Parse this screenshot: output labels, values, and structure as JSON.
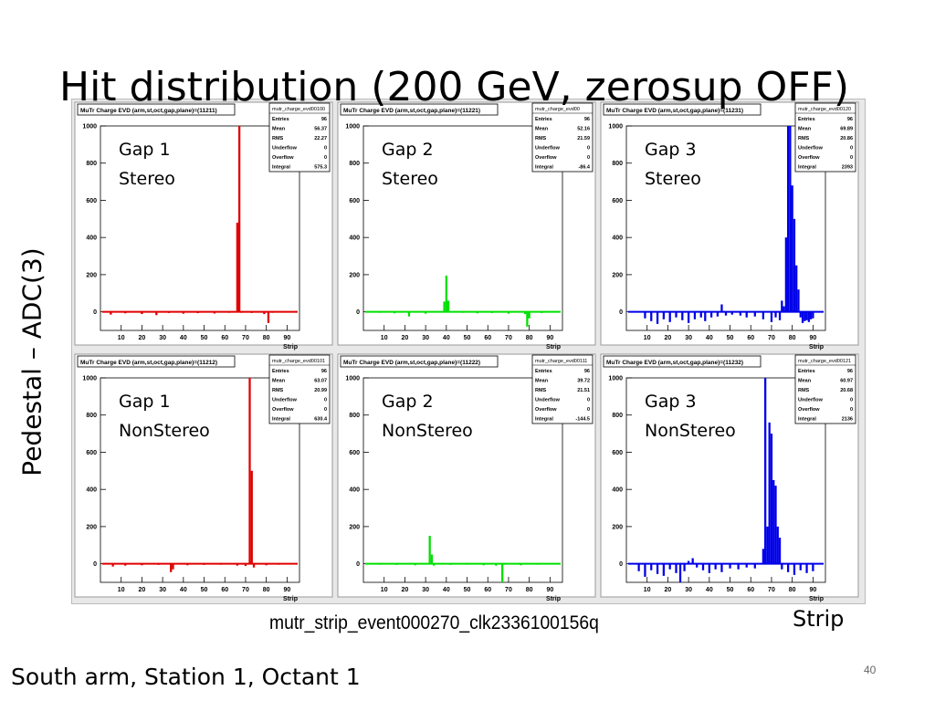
{
  "slide": {
    "title": "Hit distribution (200 GeV, zerosup OFF)",
    "y_axis_label": "Pedestal – ADC(3)",
    "x_axis_label": "Strip",
    "event_file": "mutr_strip_event000270_clk2336100156q",
    "footer": "South arm, Station 1, Octant 1",
    "page_number": "40"
  },
  "chart_data": [
    {
      "type": "bar",
      "title": "MuTr Charge EVD (arm,st,oct,gap,plane)=(11211)",
      "gap_label": "Gap 1",
      "plane_label": "Stereo",
      "color": "#e00000",
      "stats_name": "mutr_charge_evd00100",
      "stats": [
        [
          "Entries",
          "96"
        ],
        [
          "Mean",
          "56.37"
        ],
        [
          "RMS",
          "22.27"
        ],
        [
          "Underflow",
          "0"
        ],
        [
          "Overflow",
          "0"
        ],
        [
          "Integral",
          "575.3"
        ]
      ],
      "xlabel": "Strip",
      "xlim": [
        0,
        96
      ],
      "ylim": [
        -100,
        1000
      ],
      "x_ticks": [
        10,
        20,
        30,
        40,
        50,
        60,
        70,
        80,
        90
      ],
      "y_ticks": [
        0,
        200,
        400,
        600,
        800,
        1000
      ],
      "baseline": 0,
      "points": [
        [
          5,
          -15
        ],
        [
          12,
          -8
        ],
        [
          20,
          -12
        ],
        [
          27,
          -18
        ],
        [
          33,
          -6
        ],
        [
          40,
          -10
        ],
        [
          47,
          -7
        ],
        [
          55,
          -9
        ],
        [
          62,
          -5
        ],
        [
          66,
          480
        ],
        [
          67,
          1000
        ],
        [
          68,
          -5
        ],
        [
          73,
          -6
        ],
        [
          79,
          -12
        ],
        [
          81,
          -60
        ],
        [
          83,
          -5
        ]
      ]
    },
    {
      "type": "bar",
      "title": "MuTr Charge EVD (arm,st,oct,gap,plane)=(11221)",
      "gap_label": "Gap 2",
      "plane_label": "Stereo",
      "color": "#00e000",
      "stats_name": "mutr_charge_evd00",
      "stats": [
        [
          "Entries",
          "96"
        ],
        [
          "Mean",
          "52.16"
        ],
        [
          "RMS",
          "21.59"
        ],
        [
          "Underflow",
          "0"
        ],
        [
          "Overflow",
          "0"
        ],
        [
          "Integral",
          "-86.4"
        ]
      ],
      "xlabel": "Strip",
      "xlim": [
        0,
        96
      ],
      "ylim": [
        -100,
        1000
      ],
      "x_ticks": [
        10,
        20,
        30,
        40,
        50,
        60,
        70,
        80,
        90
      ],
      "y_ticks": [
        0,
        200,
        400,
        600,
        800,
        1000
      ],
      "baseline": 0,
      "points": [
        [
          8,
          -5
        ],
        [
          15,
          -8
        ],
        [
          22,
          -25
        ],
        [
          30,
          -10
        ],
        [
          39,
          55
        ],
        [
          40,
          195
        ],
        [
          41,
          60
        ],
        [
          48,
          -5
        ],
        [
          55,
          -8
        ],
        [
          62,
          -6
        ],
        [
          70,
          -10
        ],
        [
          78,
          -12
        ],
        [
          79,
          -80
        ],
        [
          80,
          -35
        ],
        [
          86,
          -6
        ]
      ]
    },
    {
      "type": "bar",
      "title": "MuTr Charge EVD (arm,st,oct,gap,plane)=(11231)",
      "gap_label": "Gap 3",
      "plane_label": "Stereo",
      "color": "#0000e8",
      "stats_name": "mutr_charge_evd00120",
      "stats": [
        [
          "Entries",
          "96"
        ],
        [
          "Mean",
          "69.89"
        ],
        [
          "RMS",
          "20.86"
        ],
        [
          "Underflow",
          "0"
        ],
        [
          "Overflow",
          "0"
        ],
        [
          "Integral",
          "2393"
        ]
      ],
      "xlabel": "Strip",
      "xlim": [
        0,
        96
      ],
      "ylim": [
        -100,
        1000
      ],
      "x_ticks": [
        10,
        20,
        30,
        40,
        50,
        60,
        70,
        80,
        90
      ],
      "y_ticks": [
        0,
        200,
        400,
        600,
        800,
        1000
      ],
      "baseline": 0,
      "points": [
        [
          9,
          -35
        ],
        [
          12,
          -50
        ],
        [
          15,
          -65
        ],
        [
          18,
          -40
        ],
        [
          21,
          -55
        ],
        [
          24,
          -30
        ],
        [
          27,
          -45
        ],
        [
          30,
          -60
        ],
        [
          33,
          -40
        ],
        [
          36,
          -30
        ],
        [
          38,
          -50
        ],
        [
          41,
          -30
        ],
        [
          44,
          -25
        ],
        [
          46,
          40
        ],
        [
          48,
          -20
        ],
        [
          51,
          -15
        ],
        [
          55,
          -20
        ],
        [
          58,
          -30
        ],
        [
          62,
          -25
        ],
        [
          66,
          -40
        ],
        [
          70,
          -55
        ],
        [
          72,
          -30
        ],
        [
          74,
          -45
        ],
        [
          75,
          60
        ],
        [
          76,
          30
        ],
        [
          77,
          400
        ],
        [
          78,
          1000
        ],
        [
          79,
          1000
        ],
        [
          80,
          680
        ],
        [
          81,
          500
        ],
        [
          82,
          250
        ],
        [
          83,
          120
        ],
        [
          84,
          -30
        ],
        [
          85,
          -60
        ],
        [
          86,
          -50
        ],
        [
          87,
          -45
        ],
        [
          88,
          -55
        ],
        [
          89,
          -40
        ],
        [
          90,
          -35
        ]
      ]
    },
    {
      "type": "bar",
      "title": "MuTr Charge EVD (arm,st,oct,gap,plane)=(11212)",
      "gap_label": "Gap 1",
      "plane_label": "NonStereo",
      "color": "#e00000",
      "stats_name": "mutr_charge_evd00101",
      "stats": [
        [
          "Entries",
          "96"
        ],
        [
          "Mean",
          "63.07"
        ],
        [
          "RMS",
          "20.99"
        ],
        [
          "Underflow",
          "0"
        ],
        [
          "Overflow",
          "0"
        ],
        [
          "Integral",
          "630.4"
        ]
      ],
      "xlabel": "Strip",
      "xlim": [
        0,
        96
      ],
      "ylim": [
        -100,
        1000
      ],
      "x_ticks": [
        10,
        20,
        30,
        40,
        50,
        60,
        70,
        80,
        90
      ],
      "y_ticks": [
        0,
        200,
        400,
        600,
        800,
        1000
      ],
      "baseline": 0,
      "points": [
        [
          6,
          -15
        ],
        [
          12,
          -10
        ],
        [
          20,
          -8
        ],
        [
          28,
          -6
        ],
        [
          34,
          -45
        ],
        [
          35,
          -30
        ],
        [
          42,
          -8
        ],
        [
          50,
          -6
        ],
        [
          58,
          -5
        ],
        [
          66,
          -10
        ],
        [
          70,
          -12
        ],
        [
          72,
          1000
        ],
        [
          73,
          500
        ],
        [
          74,
          -20
        ],
        [
          80,
          -8
        ],
        [
          86,
          -5
        ]
      ]
    },
    {
      "type": "bar",
      "title": "MuTr Charge EVD (arm,st,oct,gap,plane)=(11222)",
      "gap_label": "Gap 2",
      "plane_label": "NonStereo",
      "color": "#00e000",
      "stats_name": "mutr_charge_evd00111",
      "stats": [
        [
          "Entries",
          "96"
        ],
        [
          "Mean",
          "39.72"
        ],
        [
          "RMS",
          "21.51"
        ],
        [
          "Underflow",
          "0"
        ],
        [
          "Overflow",
          "0"
        ],
        [
          "Integral",
          "-144.5"
        ]
      ],
      "xlabel": "Strip",
      "xlim": [
        0,
        96
      ],
      "ylim": [
        -100,
        1000
      ],
      "x_ticks": [
        10,
        20,
        30,
        40,
        50,
        60,
        70,
        80,
        90
      ],
      "y_ticks": [
        0,
        200,
        400,
        600,
        800,
        1000
      ],
      "baseline": 0,
      "points": [
        [
          8,
          -5
        ],
        [
          16,
          -6
        ],
        [
          25,
          -8
        ],
        [
          32,
          150
        ],
        [
          33,
          50
        ],
        [
          34,
          -10
        ],
        [
          42,
          -6
        ],
        [
          50,
          -5
        ],
        [
          58,
          -8
        ],
        [
          64,
          -10
        ],
        [
          67,
          -100
        ],
        [
          68,
          -5
        ],
        [
          76,
          -8
        ],
        [
          84,
          -5
        ]
      ]
    },
    {
      "type": "bar",
      "title": "MuTr Charge EVD (arm,st,oct,gap,plane)=(11232)",
      "gap_label": "Gap 3",
      "plane_label": "NonStereo",
      "color": "#0000e8",
      "stats_name": "mutr_charge_evd00121",
      "stats": [
        [
          "Entries",
          "96"
        ],
        [
          "Mean",
          "60.97"
        ],
        [
          "RMS",
          "20.68"
        ],
        [
          "Underflow",
          "0"
        ],
        [
          "Overflow",
          "0"
        ],
        [
          "Integral",
          "2136"
        ]
      ],
      "xlabel": "Strip",
      "xlim": [
        0,
        96
      ],
      "ylim": [
        -100,
        1000
      ],
      "x_ticks": [
        10,
        20,
        30,
        40,
        50,
        60,
        70,
        80,
        90
      ],
      "y_ticks": [
        0,
        200,
        400,
        600,
        800,
        1000
      ],
      "baseline": 0,
      "points": [
        [
          6,
          -40
        ],
        [
          9,
          -70
        ],
        [
          12,
          -35
        ],
        [
          15,
          -55
        ],
        [
          18,
          -65
        ],
        [
          21,
          -30
        ],
        [
          24,
          -50
        ],
        [
          26,
          -100
        ],
        [
          28,
          -40
        ],
        [
          30,
          15
        ],
        [
          32,
          30
        ],
        [
          34,
          -20
        ],
        [
          37,
          -35
        ],
        [
          40,
          -50
        ],
        [
          43,
          -30
        ],
        [
          46,
          -45
        ],
        [
          50,
          -25
        ],
        [
          54,
          -30
        ],
        [
          58,
          -20
        ],
        [
          62,
          -25
        ],
        [
          66,
          80
        ],
        [
          67,
          1000
        ],
        [
          68,
          200
        ],
        [
          69,
          760
        ],
        [
          70,
          700
        ],
        [
          71,
          450
        ],
        [
          72,
          420
        ],
        [
          73,
          200
        ],
        [
          74,
          140
        ],
        [
          75,
          -30
        ],
        [
          78,
          -45
        ],
        [
          81,
          -60
        ],
        [
          84,
          -35
        ],
        [
          87,
          -50
        ],
        [
          90,
          -40
        ]
      ]
    }
  ]
}
